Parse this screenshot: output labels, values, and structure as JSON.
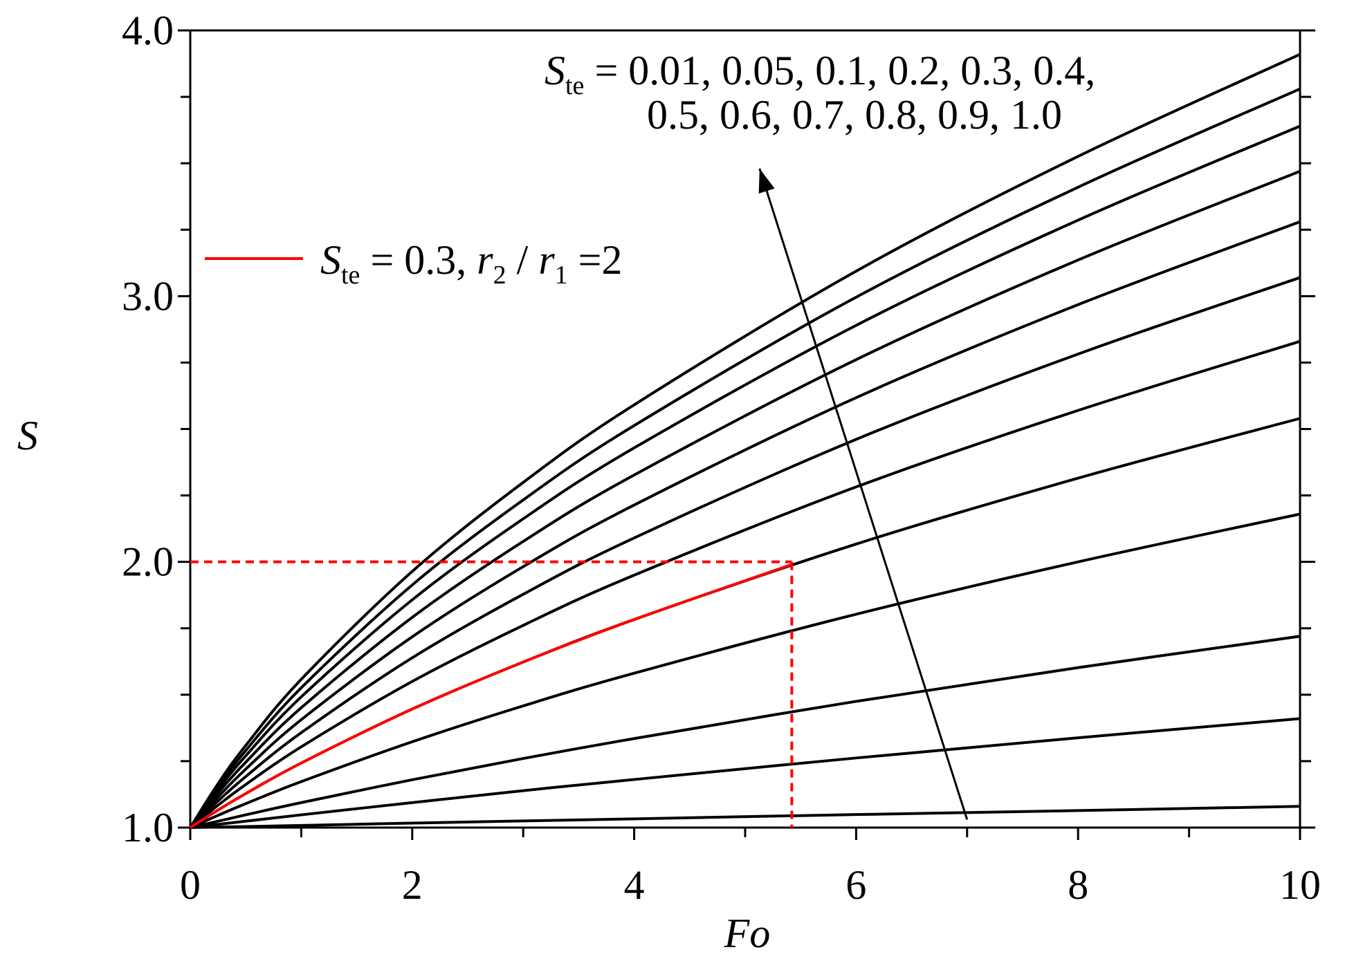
{
  "chart_data": {
    "type": "line",
    "x_label": "Fo",
    "y_label": "S",
    "xlim": [
      0,
      10
    ],
    "ylim": [
      1.0,
      4.0
    ],
    "xticks": [
      0,
      2,
      4,
      6,
      8,
      10
    ],
    "xminorticks": [
      1,
      3,
      5,
      7,
      9
    ],
    "yticks": [
      {
        "value": 1.0,
        "label": "1.0"
      },
      {
        "value": 2.0,
        "label": "2.0"
      },
      {
        "value": 3.0,
        "label": "3.0"
      },
      {
        "value": 4.0,
        "label": "4.0"
      }
    ],
    "yminorticks": [
      1.25,
      1.5,
      1.75,
      2.25,
      2.5,
      2.75,
      3.25,
      3.5,
      3.75
    ],
    "x": [
      0,
      0.25,
      0.5,
      1,
      2,
      3,
      4,
      6,
      8,
      10
    ],
    "series": [
      {
        "color": "#000000",
        "values": [
          1,
          1.002,
          1.004,
          1.008,
          1.017,
          1.025,
          1.033,
          1.049,
          1.064,
          1.08
        ]
      },
      {
        "color": "#000000",
        "values": [
          1,
          1.012,
          1.024,
          1.048,
          1.094,
          1.139,
          1.181,
          1.262,
          1.338,
          1.41
        ]
      },
      {
        "color": "#000000",
        "values": [
          1,
          1.024,
          1.048,
          1.094,
          1.18,
          1.26,
          1.335,
          1.475,
          1.602,
          1.72
        ]
      },
      {
        "color": "#000000",
        "values": [
          1,
          1.046,
          1.09,
          1.173,
          1.323,
          1.458,
          1.581,
          1.803,
          2.0,
          2.18
        ]
      },
      {
        "color": "#000000",
        "values": [
          1,
          1.066,
          1.128,
          1.243,
          1.446,
          1.623,
          1.783,
          2.067,
          2.315,
          2.54
        ]
      },
      {
        "color": "#000000",
        "values": [
          1,
          1.084,
          1.162,
          1.304,
          1.55,
          1.761,
          1.95,
          2.282,
          2.57,
          2.83
        ]
      },
      {
        "color": "#000000",
        "values": [
          1,
          1.1,
          1.192,
          1.357,
          1.639,
          1.878,
          2.09,
          2.461,
          2.782,
          3.07
        ]
      },
      {
        "color": "#000000",
        "values": [
          1,
          1.115,
          1.22,
          1.406,
          1.718,
          1.982,
          2.214,
          2.618,
          2.968,
          3.28
        ]
      },
      {
        "color": "#000000",
        "values": [
          1,
          1.13,
          1.246,
          1.451,
          1.791,
          2.077,
          2.327,
          2.761,
          3.136,
          3.47
        ]
      },
      {
        "color": "#000000",
        "values": [
          1,
          1.143,
          1.27,
          1.492,
          1.857,
          2.162,
          2.429,
          2.89,
          3.286,
          3.64
        ]
      },
      {
        "color": "#000000",
        "values": [
          1,
          1.154,
          1.29,
          1.526,
          1.913,
          2.233,
          2.513,
          2.996,
          3.41,
          3.78
        ]
      },
      {
        "color": "#000000",
        "values": [
          1,
          1.165,
          1.309,
          1.558,
          1.964,
          2.299,
          2.591,
          3.094,
          3.526,
          3.91
        ]
      }
    ],
    "highlight": {
      "color": "#ff0000",
      "x": [
        0,
        0.25,
        0.5,
        1,
        2,
        3,
        4,
        5.42
      ],
      "values": [
        1,
        1.066,
        1.128,
        1.243,
        1.446,
        1.623,
        1.783,
        1.99
      ],
      "legend": [
        {
          "text": "S",
          "style": "italic"
        },
        {
          "text": "te",
          "style": "sub"
        },
        {
          "text": " = 0.3, ",
          "style": "normal"
        },
        {
          "text": "r",
          "style": "italic"
        },
        {
          "text": "2",
          "style": "sub"
        },
        {
          "text": " / ",
          "style": "normal"
        },
        {
          "text": "r",
          "style": "italic"
        },
        {
          "text": "1",
          "style": "sub"
        },
        {
          "text": " =2",
          "style": "normal"
        }
      ]
    },
    "reference_point": {
      "x": 5.42,
      "y": 2.0
    },
    "arrow": {
      "from": [
        7.0,
        1.03
      ],
      "to": [
        5.13,
        3.48
      ]
    },
    "annotation": [
      [
        {
          "text": "S",
          "style": "italic"
        },
        {
          "text": "te",
          "style": "sub"
        },
        {
          "text": " = 0.01, 0.05, 0.1, 0.2, 0.3, 0.4,",
          "style": "normal"
        }
      ],
      [
        {
          "text": "0.5, 0.6, 0.7, 0.8, 0.9, 1.0",
          "style": "normal"
        }
      ]
    ]
  }
}
